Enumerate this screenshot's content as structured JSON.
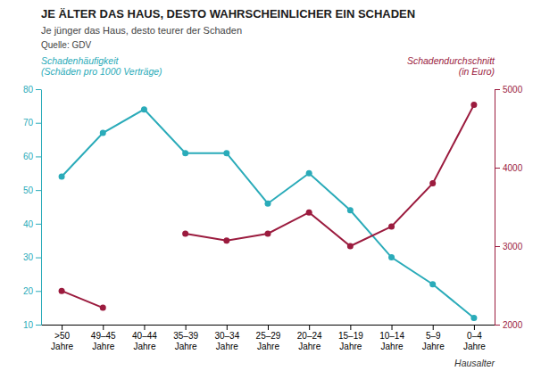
{
  "chart_data": {
    "type": "line",
    "title": "JE ÄLTER DAS HAUS, DESTO WAHRSCHEINLICHER EIN SCHADEN",
    "subtitle": "Je jünger das Haus, desto teurer der Schaden",
    "source": "Quelle: GDV",
    "x_label": "Hausalter",
    "annotations": [
      "Schadenhäufigkeit\n(Schäden pro 1000 Verträge)",
      "Schadendurchschnitt\n(in Euro)"
    ],
    "categories": [
      ">50\nJahre",
      "49–45\nJahre",
      "40–44\nJahre",
      "35–39\nJahre",
      "30–34\nJahre",
      "25–29\nJahre",
      "20–24\nJahre",
      "15–19\nJahre",
      "10–14\nJahre",
      "5–9\nJahre",
      "0–4\nJahre"
    ],
    "series": [
      {
        "color": "#2AABB9",
        "marker": "circle",
        "values": [
          54,
          67,
          74,
          61,
          61,
          46,
          55,
          44,
          30,
          22,
          12
        ]
      },
      {
        "color": "#9B1B3E",
        "marker": "circle",
        "axis": "y2",
        "values": [
          2430,
          2215,
          null,
          3160,
          3070,
          3160,
          3430,
          3000,
          3250,
          3800,
          4800
        ]
      }
    ],
    "ylim": [
      10,
      80
    ],
    "yticks": [
      10,
      20,
      30,
      40,
      50,
      60,
      70,
      80
    ],
    "y2lim": [
      2000,
      5000
    ],
    "y2ticks": [
      2000,
      3000,
      4000,
      5000
    ],
    "grid": false
  }
}
